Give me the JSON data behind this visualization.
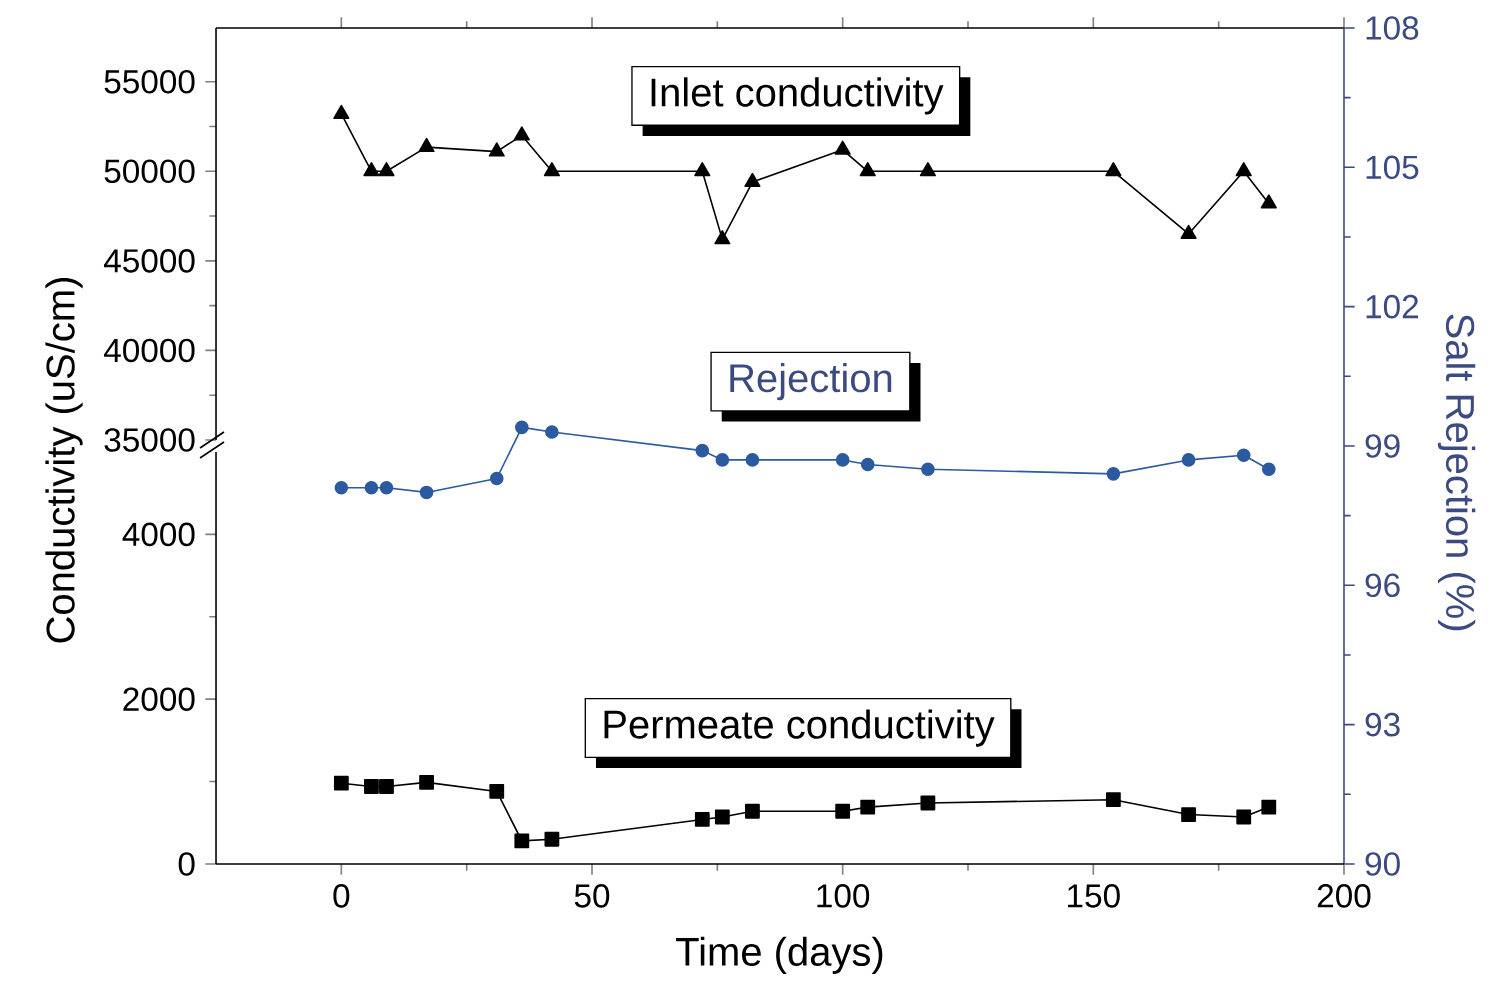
{
  "chart_data": [
    {
      "type": "line",
      "x": [
        0,
        6,
        9,
        17,
        31,
        36,
        42,
        72,
        76,
        82,
        100,
        105,
        117,
        154,
        169,
        180,
        185
      ],
      "xlim": [
        -25,
        200
      ],
      "xticks": [
        0,
        50,
        100,
        150,
        200
      ],
      "ylim": [
        35000,
        58000
      ],
      "yticks": [
        35000,
        40000,
        45000,
        50000,
        55000
      ],
      "tick_labels": "y",
      "marker": "triangle",
      "series": [
        {
          "name": "Inlet conductivity",
          "color": "#000000",
          "values": [
            53200,
            50000,
            50000,
            51350,
            51100,
            52000,
            50000,
            50000,
            46200,
            49400,
            51200,
            50000,
            50000,
            50000,
            46500,
            50000,
            48200
          ]
        }
      ]
    },
    {
      "type": "line",
      "y2label": "Salt Rejection (%)",
      "x": [
        0,
        6,
        9,
        17,
        31,
        36,
        42,
        72,
        76,
        82,
        100,
        105,
        117,
        154,
        169,
        180,
        185
      ],
      "xlim": [
        -25,
        200
      ],
      "y2lim": [
        90,
        108
      ],
      "y2ticks": [
        90,
        93,
        96,
        99,
        102,
        105,
        108
      ],
      "marker": "circle",
      "series": [
        {
          "name": "Rejection",
          "color": "#2b5aa0",
          "axis": "y2",
          "values": [
            98.1,
            98.1,
            98.1,
            98.0,
            98.3,
            99.4,
            99.3,
            98.9,
            98.7,
            98.7,
            98.7,
            98.6,
            98.5,
            98.4,
            98.7,
            98.8,
            98.5
          ]
        }
      ]
    },
    {
      "type": "line",
      "xlabel": "Time (days)",
      "ylabel": "Conductivity (uS/cm)",
      "x": [
        0,
        6,
        9,
        17,
        31,
        36,
        42,
        72,
        76,
        82,
        100,
        105,
        117,
        154,
        169,
        180,
        185
      ],
      "xlim": [
        -25,
        200
      ],
      "xticks": [
        0,
        50,
        100,
        150,
        200
      ],
      "ylim": [
        0,
        5000
      ],
      "yticks": [
        0,
        2000,
        4000
      ],
      "marker": "square",
      "series": [
        {
          "name": "Permeate conductivity",
          "color": "#000000",
          "values": [
            980,
            940,
            940,
            990,
            880,
            280,
            300,
            540,
            570,
            640,
            640,
            690,
            740,
            780,
            600,
            570,
            690
          ]
        }
      ]
    }
  ]
}
